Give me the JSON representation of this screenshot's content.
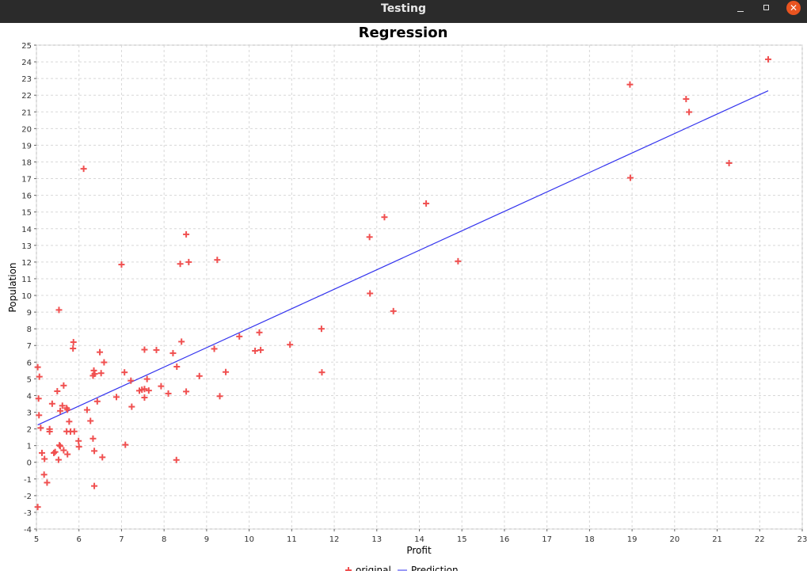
{
  "window": {
    "title": "Testing"
  },
  "chart_data": {
    "type": "scatter",
    "title": "Regression",
    "xlabel": "Profit",
    "ylabel": "Population",
    "xlim": [
      5,
      23
    ],
    "ylim": [
      -4,
      25
    ],
    "xticks": [
      "5",
      "6",
      "7",
      "8",
      "9",
      "10",
      "11",
      "12",
      "13",
      "14",
      "15",
      "16",
      "17",
      "18",
      "19",
      "20",
      "21",
      "22",
      "23"
    ],
    "yticks": [
      "-4",
      "-3",
      "-2",
      "-1",
      "0",
      "1",
      "2",
      "3",
      "4",
      "5",
      "6",
      "7",
      "8",
      "9",
      "10",
      "11",
      "12",
      "13",
      "14",
      "15",
      "16",
      "17",
      "18",
      "19",
      "20",
      "21",
      "22",
      "23",
      "24",
      "25"
    ],
    "grid": true,
    "legend_position": "bottom",
    "series": [
      {
        "name": "original",
        "type": "scatter",
        "marker": "plus",
        "color": "#f05050",
        "points": [
          [
            6.11,
            17.59
          ],
          [
            5.53,
            9.13
          ],
          [
            8.52,
            13.66
          ],
          [
            7.0,
            11.85
          ],
          [
            5.86,
            6.82
          ],
          [
            8.38,
            11.89
          ],
          [
            7.48,
            4.35
          ],
          [
            8.58,
            12.0
          ],
          [
            6.49,
            6.6
          ],
          [
            5.05,
            3.82
          ],
          [
            5.71,
            3.25
          ],
          [
            14.16,
            15.51
          ],
          [
            5.73,
            3.15
          ],
          [
            8.41,
            7.23
          ],
          [
            5.64,
            0.72
          ],
          [
            5.37,
            3.51
          ],
          [
            6.37,
            5.3
          ],
          [
            5.13,
            0.56
          ],
          [
            6.43,
            3.65
          ],
          [
            7.07,
            5.39
          ],
          [
            6.19,
            3.14
          ],
          [
            20.27,
            21.77
          ],
          [
            5.49,
            4.26
          ],
          [
            6.33,
            5.19
          ],
          [
            5.56,
            3.08
          ],
          [
            18.95,
            22.64
          ],
          [
            12.83,
            13.5
          ],
          [
            10.96,
            7.05
          ],
          [
            13.18,
            14.69
          ],
          [
            22.2,
            24.15
          ],
          [
            5.25,
            -1.22
          ],
          [
            6.59,
            5.99
          ],
          [
            9.25,
            12.13
          ],
          [
            5.89,
            1.85
          ],
          [
            8.21,
            6.54
          ],
          [
            7.93,
            4.56
          ],
          [
            8.1,
            4.12
          ],
          [
            5.61,
            3.39
          ],
          [
            12.84,
            10.12
          ],
          [
            6.35,
            5.5
          ],
          [
            5.41,
            0.56
          ],
          [
            6.88,
            3.91
          ],
          [
            11.71,
            5.39
          ],
          [
            5.77,
            2.44
          ],
          [
            7.82,
            6.73
          ],
          [
            7.09,
            1.05
          ],
          [
            5.07,
            5.13
          ],
          [
            5.8,
            1.84
          ],
          [
            11.7,
            8.0
          ],
          [
            5.54,
            1.02
          ],
          [
            7.54,
            6.75
          ],
          [
            5.31,
            1.84
          ],
          [
            7.42,
            4.29
          ],
          [
            7.6,
            4.99
          ],
          [
            6.33,
            1.42
          ],
          [
            6.36,
            -1.42
          ],
          [
            6.27,
            2.48
          ],
          [
            5.64,
            4.6
          ],
          [
            9.31,
            3.96
          ],
          [
            9.45,
            5.41
          ],
          [
            8.83,
            5.17
          ],
          [
            5.18,
            -0.74
          ],
          [
            21.28,
            17.93
          ],
          [
            14.91,
            12.05
          ],
          [
            18.96,
            17.05
          ],
          [
            7.22,
            4.89
          ],
          [
            5.99,
            1.28
          ],
          [
            7.54,
            3.88
          ],
          [
            5.03,
            5.7
          ],
          [
            6.55,
            0.3
          ],
          [
            7.54,
            4.39
          ],
          [
            5.03,
            -2.68
          ],
          [
            10.27,
            6.73
          ],
          [
            5.1,
            2.06
          ],
          [
            5.73,
            0.48
          ],
          [
            5.19,
            0.2
          ],
          [
            6.36,
            0.68
          ],
          [
            9.77,
            7.54
          ],
          [
            6.52,
            5.34
          ],
          [
            8.52,
            4.24
          ],
          [
            9.18,
            6.8
          ],
          [
            6.0,
            0.93
          ],
          [
            5.52,
            0.15
          ],
          [
            5.06,
            2.82
          ],
          [
            5.71,
            1.85
          ],
          [
            7.64,
            4.3
          ],
          [
            5.87,
            7.2
          ],
          [
            5.31,
            1.99
          ],
          [
            8.29,
            0.14
          ],
          [
            13.39,
            9.06
          ],
          [
            5.44,
            0.62
          ],
          [
            20.34,
            20.99
          ],
          [
            10.24,
            7.78
          ],
          [
            10.14,
            6.68
          ],
          [
            5.56,
            0.97
          ],
          [
            8.3,
            5.73
          ],
          [
            7.24,
            3.33
          ]
        ]
      },
      {
        "name": "Prediction",
        "type": "line",
        "color": "#3333ee",
        "x": [
          5.03,
          22.2
        ],
        "y": [
          2.24,
          22.27
        ]
      }
    ]
  }
}
